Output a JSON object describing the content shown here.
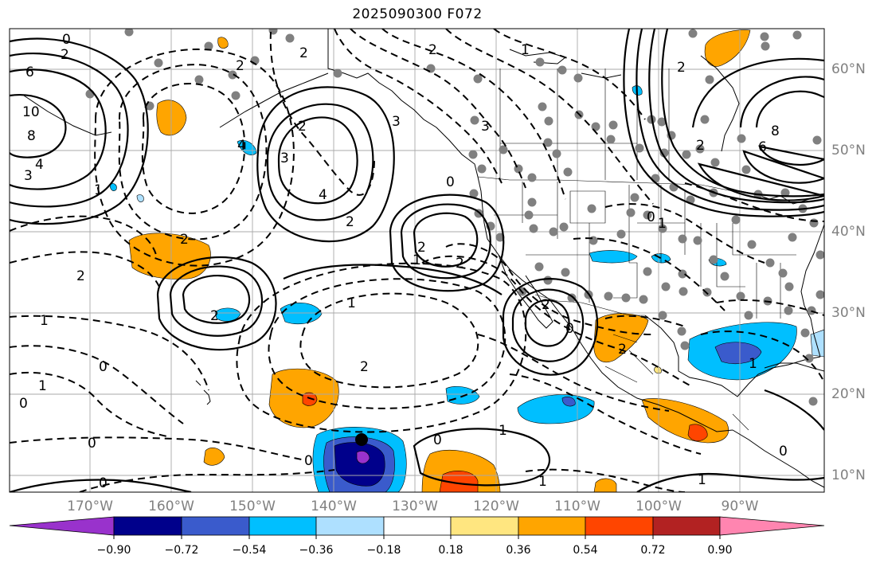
{
  "title": "2025090300 F072",
  "lon_labels": [
    "170°W",
    "160°W",
    "150°W",
    "140°W",
    "130°W",
    "120°W",
    "110°W",
    "100°W",
    "90°W"
  ],
  "lat_labels": [
    "60°N",
    "50°N",
    "40°N",
    "30°N",
    "20°N",
    "10°N"
  ],
  "colorbar": {
    "tick_labels": [
      "−0.90",
      "−0.72",
      "−0.54",
      "−0.36",
      "−0.18",
      "0.18",
      "0.36",
      "0.54",
      "0.72",
      "0.90"
    ],
    "colors": [
      "#9932cc",
      "#00008b",
      "#3a5bcc",
      "#00bfff",
      "#aee0ff",
      "#ffffff",
      "#ffe680",
      "#ffa500",
      "#ff4500",
      "#b22222",
      "#ff85b0"
    ]
  },
  "contour_labels": [
    {
      "text": "0"
    },
    {
      "text": "2"
    },
    {
      "text": "6"
    },
    {
      "text": "10"
    },
    {
      "text": "8"
    },
    {
      "text": "4"
    },
    {
      "text": "3"
    },
    {
      "text": "1"
    },
    {
      "text": "2"
    },
    {
      "text": "2"
    },
    {
      "text": "3"
    },
    {
      "text": "4"
    },
    {
      "text": "2"
    },
    {
      "text": "2"
    },
    {
      "text": "1"
    },
    {
      "text": "2"
    },
    {
      "text": "2"
    },
    {
      "text": "2"
    },
    {
      "text": "1"
    },
    {
      "text": "2"
    },
    {
      "text": "2"
    },
    {
      "text": "0"
    },
    {
      "text": "0"
    },
    {
      "text": "1"
    },
    {
      "text": "0"
    },
    {
      "text": "0"
    },
    {
      "text": "0"
    },
    {
      "text": "1"
    },
    {
      "text": "2"
    },
    {
      "text": "1"
    },
    {
      "text": "0"
    },
    {
      "text": "2"
    },
    {
      "text": "3"
    },
    {
      "text": "3"
    },
    {
      "text": "2"
    },
    {
      "text": "6"
    },
    {
      "text": "8"
    },
    {
      "text": "2"
    },
    {
      "text": "4"
    },
    {
      "text": "1"
    },
    {
      "text": "0"
    },
    {
      "text": "1"
    },
    {
      "text": "0"
    },
    {
      "text": "0"
    },
    {
      "text": "1"
    },
    {
      "text": "2"
    },
    {
      "text": "1"
    },
    {
      "text": "1"
    },
    {
      "text": "2"
    },
    {
      "text": "0"
    }
  ]
}
